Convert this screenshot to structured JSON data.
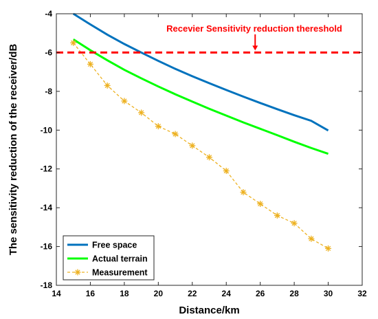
{
  "chart_data": {
    "type": "line",
    "title": "",
    "xlabel": "Distance/km",
    "ylabel": "The sensitivity reduction of the receiver/dB",
    "xlim": [
      14,
      32
    ],
    "ylim": [
      -18,
      -4
    ],
    "xticks": [
      14,
      16,
      18,
      20,
      22,
      24,
      26,
      28,
      30,
      32
    ],
    "yticks": [
      -18,
      -16,
      -14,
      -12,
      -10,
      -8,
      -6,
      -4
    ],
    "grid": false,
    "legend_position": "bottom-left",
    "series": [
      {
        "name": "Free space",
        "color": "#0072BD",
        "style": "solid",
        "x": [
          15,
          16,
          17,
          18,
          19,
          20,
          21,
          22,
          23,
          24,
          25,
          26,
          27,
          28,
          29,
          30
        ],
        "y": [
          -4.0,
          -4.55,
          -5.08,
          -5.56,
          -6.0,
          -6.43,
          -6.84,
          -7.22,
          -7.58,
          -7.93,
          -8.27,
          -8.6,
          -8.92,
          -9.23,
          -9.52,
          -10.02
        ]
      },
      {
        "name": "Actual terrain",
        "color": "#00FF00",
        "style": "solid",
        "x": [
          15,
          16,
          17,
          18,
          19,
          20,
          21,
          22,
          23,
          24,
          25,
          26,
          27,
          28,
          29,
          30
        ],
        "y": [
          -5.32,
          -5.88,
          -6.4,
          -6.89,
          -7.33,
          -7.75,
          -8.15,
          -8.53,
          -8.9,
          -9.25,
          -9.6,
          -9.93,
          -10.26,
          -10.6,
          -10.92,
          -11.22
        ]
      },
      {
        "name": "Measurement",
        "color": "#EDB120",
        "style": "dashed",
        "marker": "asterisk",
        "x": [
          15,
          16,
          17,
          18,
          19,
          20,
          21,
          22,
          23,
          24,
          25,
          26,
          27,
          28,
          29,
          30
        ],
        "y": [
          -5.5,
          -6.6,
          -7.7,
          -8.5,
          -9.1,
          -9.8,
          -10.2,
          -10.8,
          -11.4,
          -12.1,
          -13.2,
          -13.8,
          -14.4,
          -14.8,
          -15.6,
          -16.1
        ]
      }
    ],
    "threshold": {
      "y": -6,
      "color": "#FF0000",
      "style": "dashed",
      "label": "Recevier Sensitivity reduction thereshold",
      "arrow_x": 25.7
    }
  }
}
